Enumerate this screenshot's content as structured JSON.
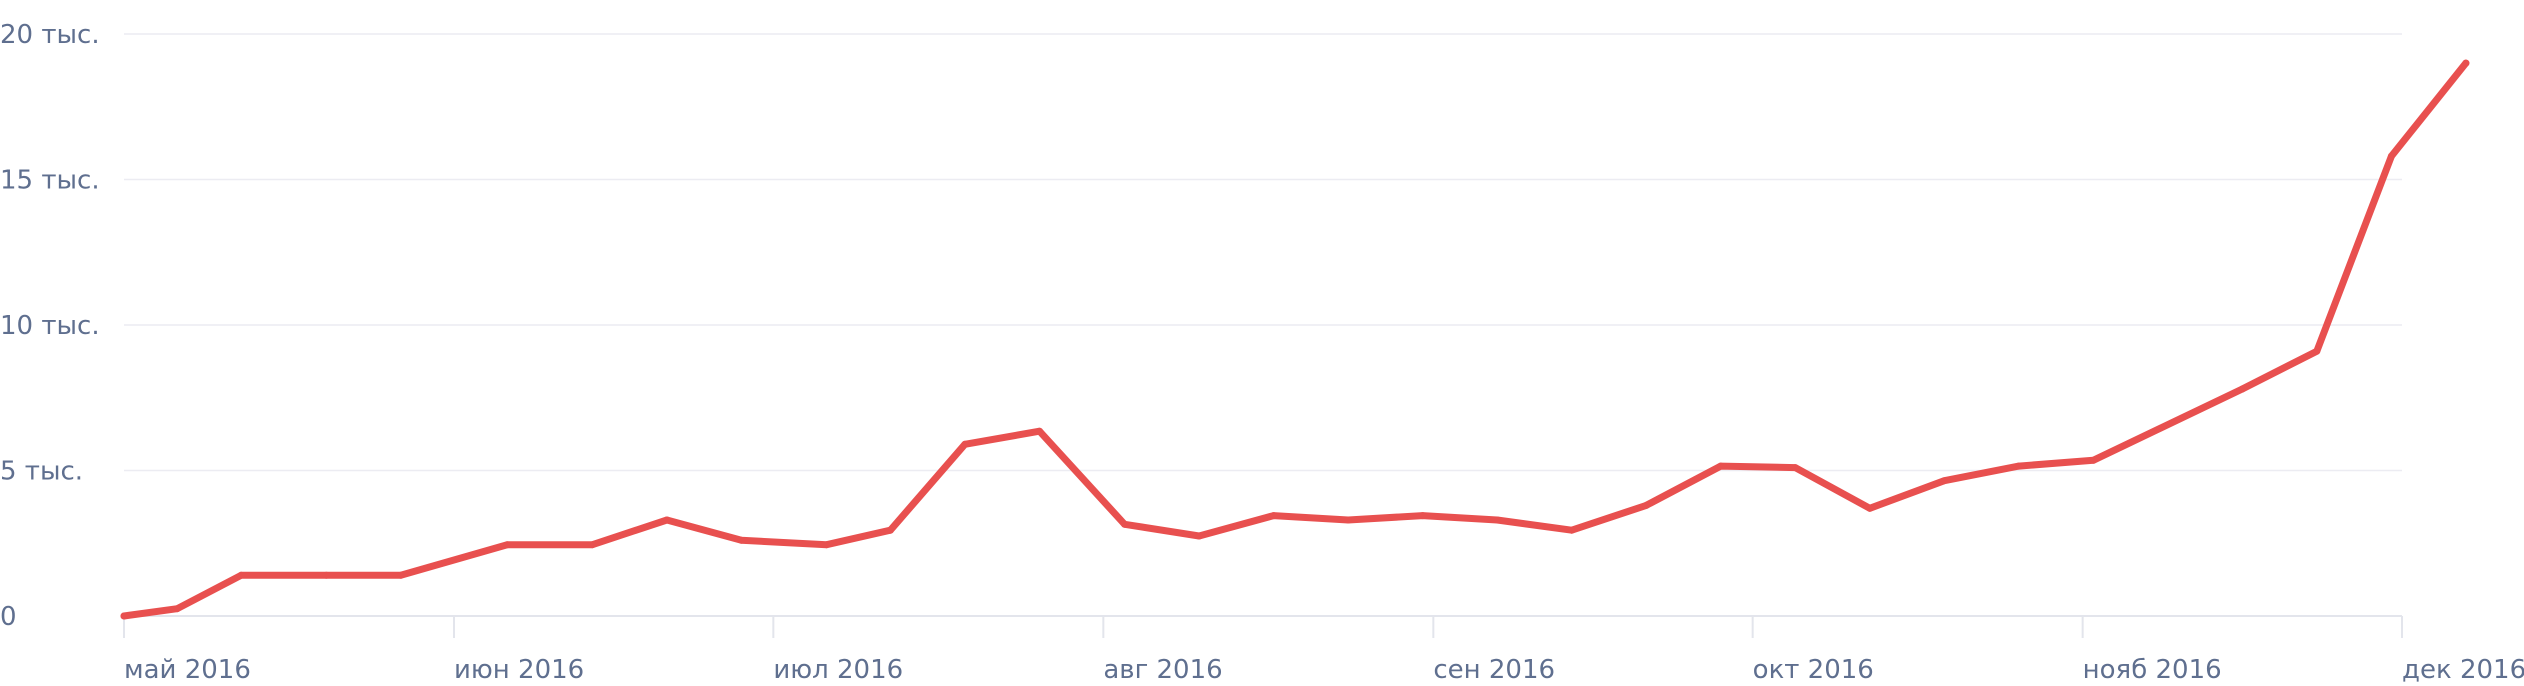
{
  "chart_data": {
    "type": "line",
    "title": "",
    "xlabel": "",
    "ylabel": "",
    "ylim": [
      0,
      20000
    ],
    "grid": true,
    "y_ticks": [
      {
        "value": 0,
        "label": "0"
      },
      {
        "value": 5000,
        "label": "5 тыс."
      },
      {
        "value": 10000,
        "label": "10 тыс."
      },
      {
        "value": 15000,
        "label": "15 тыс."
      },
      {
        "value": 20000,
        "label": "20 тыс."
      }
    ],
    "x_ticks": [
      {
        "date": "2016-05-01",
        "label": "май 2016"
      },
      {
        "date": "2016-06-01",
        "label": "июн 2016"
      },
      {
        "date": "2016-07-01",
        "label": "июл 2016"
      },
      {
        "date": "2016-08-01",
        "label": "авг 2016"
      },
      {
        "date": "2016-09-01",
        "label": "сен 2016"
      },
      {
        "date": "2016-10-01",
        "label": "окт 2016"
      },
      {
        "date": "2016-11-01",
        "label": "нояб 2016"
      },
      {
        "date": "2016-12-01",
        "label": "дек 2016"
      }
    ],
    "series": [
      {
        "color": "#e8504f",
        "points": [
          {
            "x": "2016-05-01",
            "y": 0
          },
          {
            "x": "2016-05-06",
            "y": 250
          },
          {
            "x": "2016-05-12",
            "y": 1400
          },
          {
            "x": "2016-05-20",
            "y": 1400
          },
          {
            "x": "2016-05-27",
            "y": 1400
          },
          {
            "x": "2016-06-06",
            "y": 2450
          },
          {
            "x": "2016-06-14",
            "y": 2450
          },
          {
            "x": "2016-06-21",
            "y": 3300
          },
          {
            "x": "2016-06-28",
            "y": 2600
          },
          {
            "x": "2016-07-06",
            "y": 2450
          },
          {
            "x": "2016-07-12",
            "y": 2950
          },
          {
            "x": "2016-07-19",
            "y": 5900
          },
          {
            "x": "2016-07-26",
            "y": 6350
          },
          {
            "x": "2016-08-03",
            "y": 3150
          },
          {
            "x": "2016-08-10",
            "y": 2750
          },
          {
            "x": "2016-08-17",
            "y": 3450
          },
          {
            "x": "2016-08-24",
            "y": 3300
          },
          {
            "x": "2016-08-31",
            "y": 3450
          },
          {
            "x": "2016-09-07",
            "y": 3300
          },
          {
            "x": "2016-09-14",
            "y": 2950
          },
          {
            "x": "2016-09-21",
            "y": 3800
          },
          {
            "x": "2016-09-28",
            "y": 5150
          },
          {
            "x": "2016-10-05",
            "y": 5100
          },
          {
            "x": "2016-10-12",
            "y": 3700
          },
          {
            "x": "2016-10-19",
            "y": 4650
          },
          {
            "x": "2016-10-26",
            "y": 5150
          },
          {
            "x": "2016-11-02",
            "y": 5350
          },
          {
            "x": "2016-11-16",
            "y": 7800
          },
          {
            "x": "2016-11-23",
            "y": 9100
          },
          {
            "x": "2016-11-30",
            "y": 15800
          },
          {
            "x": "2016-12-07",
            "y": 19000
          }
        ]
      }
    ]
  }
}
